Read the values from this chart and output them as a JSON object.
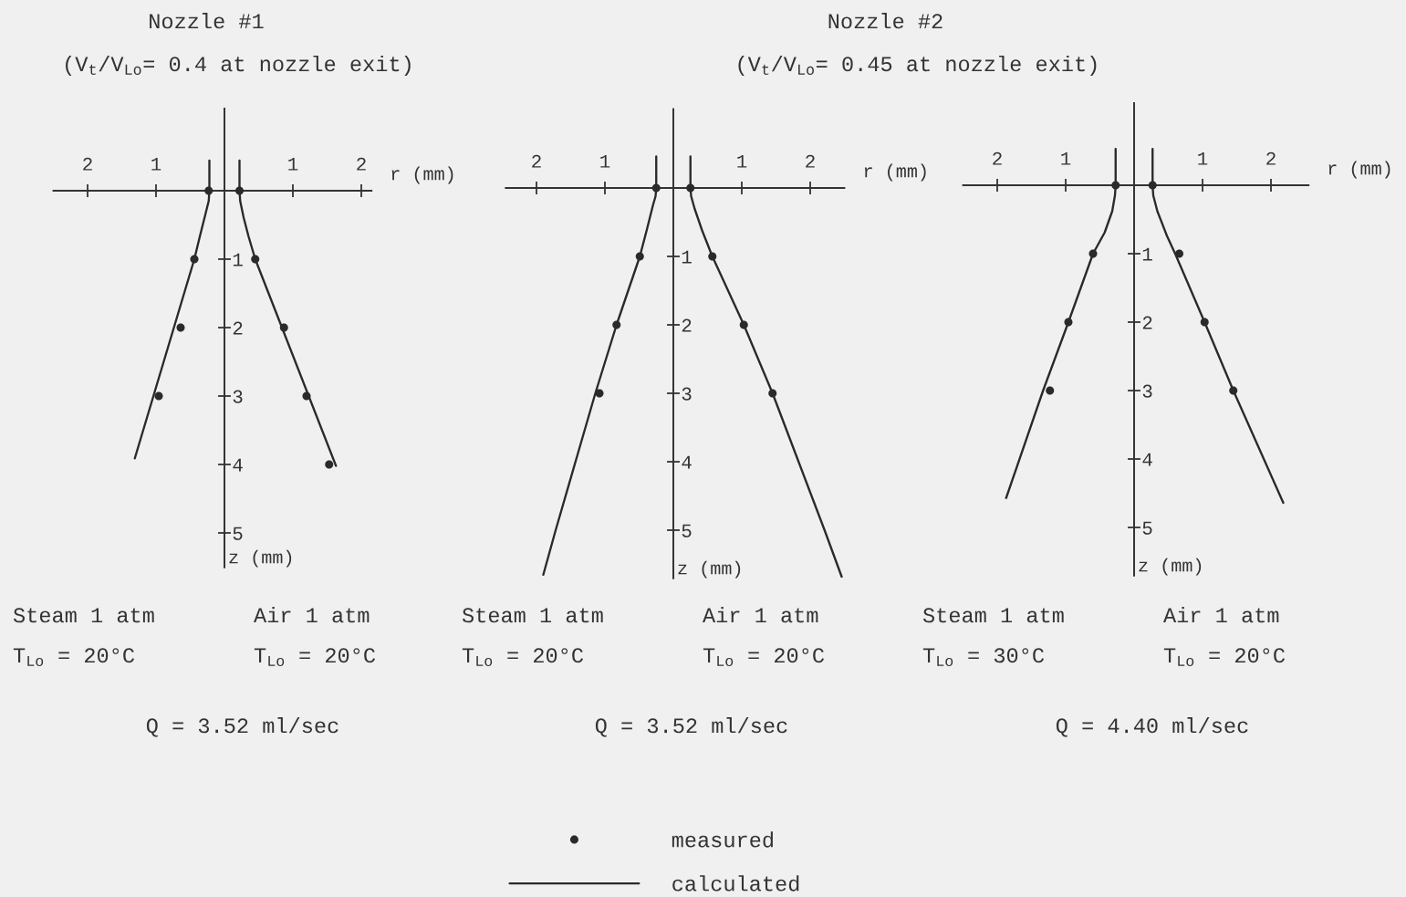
{
  "chart_data": [
    {
      "type": "line",
      "title": "Nozzle #1",
      "subtitle": "(V$_{t}$/V$_{Lo}$= 0.4 at nozzle exit)",
      "ylabel": "z (mm)",
      "xlim": [
        2.5,
        0
      ],
      "ylim": [
        5.5,
        -1.2
      ],
      "xticks": [
        1,
        2
      ],
      "yticks": [
        1,
        2,
        3,
        4,
        5
      ],
      "series": [
        {
          "type": "scatter",
          "marker": "circle",
          "color": "#2a2a2a",
          "x": [
            0.23,
            0.44,
            0.64,
            0.96
          ],
          "values": [
            0,
            1,
            2,
            3
          ]
        },
        {
          "color": "#2a2a2a",
          "x": [
            0.22,
            0.22,
            0.23,
            0.29,
            0.37,
            0.44,
            1.31
          ],
          "values": [
            -0.44,
            0,
            0.15,
            0.39,
            0.71,
            1,
            3.91
          ]
        }
      ],
      "annotations": [
        "Steam 1 atm",
        "T$_{Lo}$ = 20°C"
      ]
    },
    {
      "type": "line",
      "xlabel": "r (mm)",
      "xlim": [
        0,
        2.15
      ],
      "ylim": [
        5.5,
        -1.2
      ],
      "xticks": [
        1,
        2
      ],
      "tick_labels": "x",
      "series": [
        {
          "type": "scatter",
          "marker": "circle",
          "color": "#2a2a2a",
          "x": [
            0.22,
            0.45,
            0.87,
            1.2,
            1.53
          ],
          "values": [
            0,
            1,
            2,
            3,
            4
          ]
        },
        {
          "color": "#2a2a2a",
          "x": [
            0.22,
            0.22,
            0.23,
            0.28,
            0.35,
            0.45,
            1.63
          ],
          "values": [
            -0.44,
            0,
            0.15,
            0.39,
            0.66,
            1,
            4.02
          ]
        }
      ],
      "annotations": [
        "Air 1 atm",
        "T$_{Lo}$ = 20°C",
        "Q = 3.52 ml/sec"
      ]
    },
    {
      "type": "line",
      "ylabel": "z (mm)",
      "xlim": [
        2.45,
        0
      ],
      "ylim": [
        5.7,
        -1.15
      ],
      "xticks": [
        1,
        2
      ],
      "yticks": [
        1,
        2,
        3,
        4,
        5
      ],
      "legend": "bottom",
      "series": [
        {
          "type": "scatter",
          "name": "measured",
          "marker": "circle",
          "color": "#2a2a2a",
          "x": [
            0.25,
            0.49,
            0.83,
            1.08
          ],
          "values": [
            0,
            1,
            2,
            3
          ]
        },
        {
          "name": "calculated",
          "color": "#2a2a2a",
          "x": [
            0.25,
            0.25,
            0.26,
            0.3,
            0.39,
            0.49,
            0.83,
            1.14,
            1.43,
            1.72,
            1.9
          ],
          "values": [
            -0.46,
            0,
            0.12,
            0.26,
            0.62,
            1,
            2,
            3,
            4,
            5,
            5.65
          ]
        }
      ],
      "annotations": [
        "Steam 1 atm",
        "T$_{Lo}$ = 20°C"
      ]
    },
    {
      "type": "line",
      "title": "Nozzle #2",
      "subtitle": "(V$_{t}$/V$_{Lo}$= 0.45 at nozzle exit)",
      "xlabel": "r (mm)",
      "xlim": [
        0,
        2.5
      ],
      "ylim": [
        5.7,
        -1.15
      ],
      "xticks": [
        1,
        2
      ],
      "tick_labels": "x",
      "series": [
        {
          "type": "scatter",
          "marker": "circle",
          "color": "#2a2a2a",
          "x": [
            0.25,
            0.57,
            1.03,
            1.45
          ],
          "values": [
            0,
            1,
            2,
            3
          ]
        },
        {
          "color": "#2a2a2a",
          "x": [
            0.25,
            0.25,
            0.26,
            0.31,
            0.42,
            0.57,
            1.03,
            1.45,
            1.83,
            2.21,
            2.46
          ],
          "values": [
            -0.46,
            0,
            0.12,
            0.3,
            0.62,
            1,
            2,
            3,
            4,
            5,
            5.68
          ]
        }
      ],
      "annotations": [
        "Air 1 atm",
        "T$_{Lo}$ = 20°C",
        "Q = 3.52 ml/sec"
      ]
    },
    {
      "type": "line",
      "ylabel": "z (mm)",
      "xlim": [
        2.5,
        0
      ],
      "ylim": [
        5.7,
        -1.2
      ],
      "xticks": [
        1,
        2
      ],
      "yticks": [
        1,
        2,
        3,
        4,
        5
      ],
      "series": [
        {
          "type": "scatter",
          "marker": "circle",
          "color": "#2a2a2a",
          "x": [
            0.27,
            0.6,
            0.96,
            1.23
          ],
          "values": [
            0,
            1,
            2,
            3
          ]
        },
        {
          "color": "#2a2a2a",
          "x": [
            0.27,
            0.27,
            0.28,
            0.32,
            0.43,
            0.6,
            0.96,
            1.33,
            1.87
          ],
          "values": [
            -0.53,
            0,
            0.15,
            0.38,
            0.69,
            1,
            2,
            3,
            4.57
          ]
        }
      ],
      "annotations": [
        "Steam 1 atm",
        "T$_{Lo}$ = 30°C"
      ]
    },
    {
      "type": "line",
      "xlabel": "r (mm)",
      "xlim": [
        0,
        2.55
      ],
      "ylim": [
        5.7,
        -1.2
      ],
      "xticks": [
        1,
        2
      ],
      "tick_labels": "x",
      "series": [
        {
          "type": "scatter",
          "marker": "circle",
          "color": "#2a2a2a",
          "x": [
            0.27,
            0.66,
            1.03,
            1.45
          ],
          "values": [
            0,
            1,
            2,
            3
          ]
        },
        {
          "color": "#2a2a2a",
          "x": [
            0.27,
            0.27,
            0.28,
            0.34,
            0.48,
            0.6,
            1.03,
            1.45,
            2.18
          ],
          "values": [
            -0.53,
            0,
            0.15,
            0.38,
            0.74,
            1,
            2,
            3,
            4.64
          ]
        }
      ],
      "annotations": [
        "Air 1 atm",
        "T$_{Lo}$ = 20°C",
        "Q = 4.40 ml/sec"
      ]
    }
  ]
}
